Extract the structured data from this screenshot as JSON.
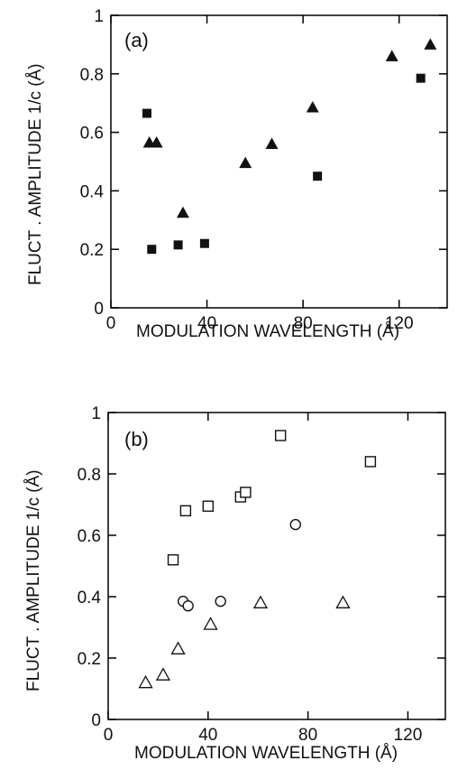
{
  "chart_data": [
    {
      "type": "scatter",
      "panel_label": "(a)",
      "xlabel": "MODULATION WAVELENGTH (Å)",
      "ylabel": "FLUCT . AMPLITUDE 1/c (Å)",
      "xlim": [
        0,
        140
      ],
      "ylim": [
        0,
        1
      ],
      "x_ticks": [
        "0",
        "40",
        "80",
        "120"
      ],
      "y_ticks": [
        "0",
        "0.2",
        "0.4",
        "0.6",
        "0.8",
        "1"
      ],
      "series": [
        {
          "marker": "filled-square",
          "points": [
            {
              "x": 15,
              "y": 0.665
            },
            {
              "x": 17,
              "y": 0.2
            },
            {
              "x": 28,
              "y": 0.215
            },
            {
              "x": 39,
              "y": 0.22
            },
            {
              "x": 86,
              "y": 0.45
            },
            {
              "x": 129,
              "y": 0.785
            }
          ]
        },
        {
          "marker": "filled-triangle",
          "points": [
            {
              "x": 16,
              "y": 0.565
            },
            {
              "x": 19,
              "y": 0.565
            },
            {
              "x": 30,
              "y": 0.325
            },
            {
              "x": 56,
              "y": 0.495
            },
            {
              "x": 67,
              "y": 0.56
            },
            {
              "x": 84,
              "y": 0.685
            },
            {
              "x": 117,
              "y": 0.86
            },
            {
              "x": 133,
              "y": 0.9
            }
          ]
        }
      ]
    },
    {
      "type": "scatter",
      "panel_label": "(b)",
      "xlabel": "MODULATION WAVELENGTH (Å)",
      "ylabel": "FLUCT . AMPLITUDE 1/c (Å)",
      "xlim": [
        0,
        135
      ],
      "ylim": [
        0,
        1
      ],
      "x_ticks": [
        "0",
        "40",
        "80",
        "120"
      ],
      "y_ticks": [
        "0",
        "0.2",
        "0.4",
        "0.6",
        "0.8",
        "1"
      ],
      "series": [
        {
          "marker": "open-square",
          "points": [
            {
              "x": 26,
              "y": 0.52
            },
            {
              "x": 31,
              "y": 0.68
            },
            {
              "x": 40,
              "y": 0.695
            },
            {
              "x": 53,
              "y": 0.725
            },
            {
              "x": 55,
              "y": 0.74
            },
            {
              "x": 69,
              "y": 0.925
            },
            {
              "x": 105,
              "y": 0.84
            }
          ]
        },
        {
          "marker": "open-circle",
          "points": [
            {
              "x": 30,
              "y": 0.385
            },
            {
              "x": 32,
              "y": 0.37
            },
            {
              "x": 45,
              "y": 0.385
            },
            {
              "x": 75,
              "y": 0.635
            }
          ]
        },
        {
          "marker": "open-triangle",
          "points": [
            {
              "x": 15,
              "y": 0.12
            },
            {
              "x": 22,
              "y": 0.145
            },
            {
              "x": 28,
              "y": 0.23
            },
            {
              "x": 41,
              "y": 0.31
            },
            {
              "x": 61,
              "y": 0.38
            },
            {
              "x": 94,
              "y": 0.38
            }
          ]
        }
      ]
    }
  ]
}
